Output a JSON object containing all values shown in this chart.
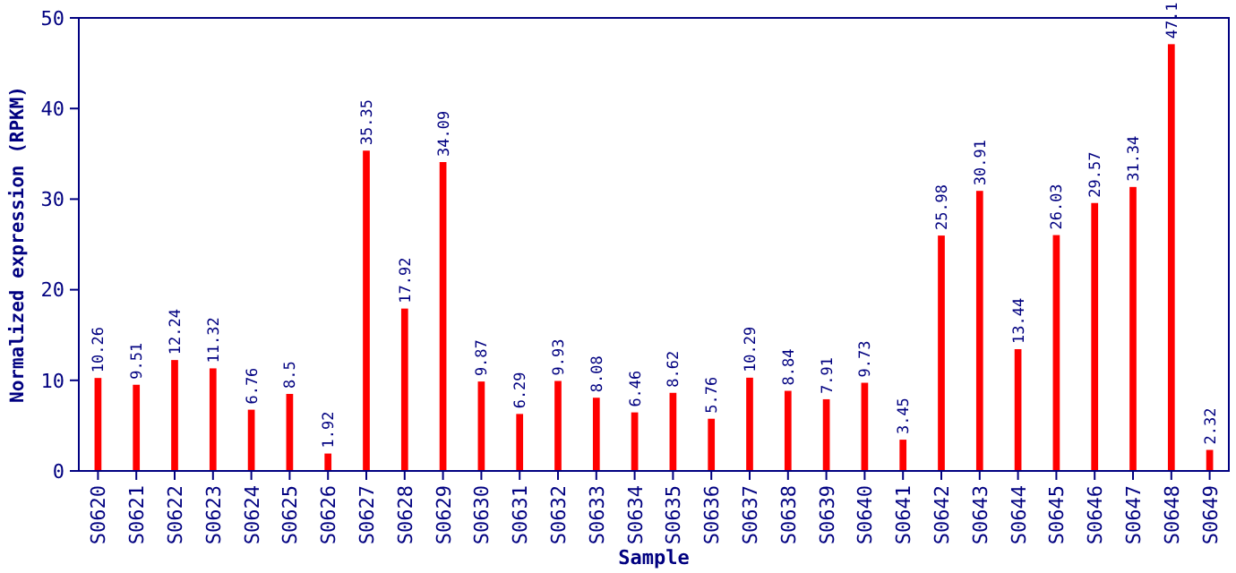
{
  "chart_data": {
    "type": "bar",
    "xlabel": "Sample",
    "ylabel": "Normalized expression (RPKM)",
    "categories": [
      "S0620",
      "S0621",
      "S0622",
      "S0623",
      "S0624",
      "S0625",
      "S0626",
      "S0627",
      "S0628",
      "S0629",
      "S0630",
      "S0631",
      "S0632",
      "S0633",
      "S0634",
      "S0635",
      "S0636",
      "S0637",
      "S0638",
      "S0639",
      "S0640",
      "S0641",
      "S0642",
      "S0643",
      "S0644",
      "S0645",
      "S0646",
      "S0647",
      "S0648",
      "S0649"
    ],
    "values": [
      10.26,
      9.51,
      12.24,
      11.32,
      6.76,
      8.5,
      1.92,
      35.35,
      17.92,
      34.09,
      9.87,
      6.29,
      9.93,
      8.08,
      6.46,
      8.62,
      5.76,
      10.29,
      8.84,
      7.91,
      9.73,
      3.45,
      25.98,
      30.91,
      13.44,
      26.03,
      29.57,
      31.34,
      47.1,
      2.32
    ],
    "color": "#ff0000",
    "ylim": [
      0,
      50
    ],
    "yticks": [
      0,
      10,
      20,
      30,
      40,
      50
    ],
    "data_labels": true,
    "grid": false
  }
}
